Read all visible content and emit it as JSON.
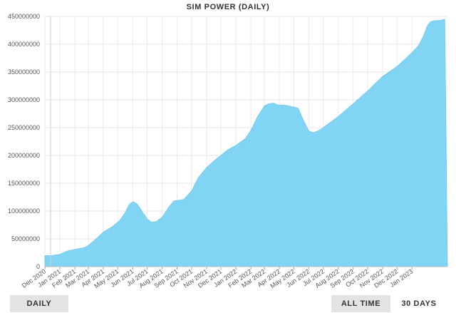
{
  "chart_data": {
    "type": "area",
    "title": "SIM POWER (DAILY)",
    "xlabel": "",
    "ylabel": "",
    "ylim": [
      0,
      450000000
    ],
    "y_ticks": [
      0,
      50000000,
      100000000,
      150000000,
      200000000,
      250000000,
      300000000,
      350000000,
      400000000,
      450000000
    ],
    "y_tick_labels": [
      "0",
      "50000000",
      "100000000",
      "150000000",
      "200000000",
      "250000000",
      "300000000",
      "350000000",
      "400000000",
      "450000000"
    ],
    "x_tick_labels": [
      "Dec 2020",
      "Jan 2021",
      "Feb 2021",
      "Mar 2021",
      "Apr 2021",
      "May 2021",
      "Jun 2021",
      "Jul 2021",
      "Aug 2021",
      "Sep 2021",
      "Oct 2021",
      "Nov 2021",
      "Dec 2021",
      "Jan 2022",
      "Feb 2022",
      "Mar 2022",
      "Apr 2022",
      "May 2022",
      "Jun 2022",
      "Jul 2022",
      "Aug 2022",
      "Sep 2022",
      "Oct 2022",
      "Nov 2022",
      "Dec 2022",
      "Jan 2023"
    ],
    "x_range": [
      "2020-12-01",
      "2023-02-08"
    ],
    "grid": true,
    "series": [
      {
        "color": "#7dd3f3",
        "points": [
          [
            "2020-12-01",
            20000000
          ],
          [
            "2020-12-15",
            20000000
          ],
          [
            "2021-01-01",
            22000000
          ],
          [
            "2021-01-15",
            28000000
          ],
          [
            "2021-02-01",
            31000000
          ],
          [
            "2021-02-20",
            34000000
          ],
          [
            "2021-03-01",
            38000000
          ],
          [
            "2021-03-20",
            52000000
          ],
          [
            "2021-04-01",
            62000000
          ],
          [
            "2021-04-20",
            72000000
          ],
          [
            "2021-05-05",
            83000000
          ],
          [
            "2021-05-15",
            95000000
          ],
          [
            "2021-05-25",
            112000000
          ],
          [
            "2021-06-02",
            117000000
          ],
          [
            "2021-06-10",
            113000000
          ],
          [
            "2021-06-20",
            100000000
          ],
          [
            "2021-07-01",
            86000000
          ],
          [
            "2021-07-10",
            80000000
          ],
          [
            "2021-07-20",
            81000000
          ],
          [
            "2021-08-01",
            89000000
          ],
          [
            "2021-08-15",
            107000000
          ],
          [
            "2021-08-25",
            118000000
          ],
          [
            "2021-09-01",
            119000000
          ],
          [
            "2021-09-15",
            121000000
          ],
          [
            "2021-10-01",
            136000000
          ],
          [
            "2021-10-15",
            160000000
          ],
          [
            "2021-11-01",
            178000000
          ],
          [
            "2021-11-15",
            189000000
          ],
          [
            "2021-12-01",
            200000000
          ],
          [
            "2021-12-15",
            210000000
          ],
          [
            "2022-01-01",
            218000000
          ],
          [
            "2022-01-20",
            230000000
          ],
          [
            "2022-02-01",
            245000000
          ],
          [
            "2022-02-15",
            270000000
          ],
          [
            "2022-03-01",
            289000000
          ],
          [
            "2022-03-10",
            293000000
          ],
          [
            "2022-03-20",
            294000000
          ],
          [
            "2022-03-28",
            291000000
          ],
          [
            "2022-04-15",
            290000000
          ],
          [
            "2022-05-01",
            287000000
          ],
          [
            "2022-05-10",
            285000000
          ],
          [
            "2022-05-20",
            265000000
          ],
          [
            "2022-06-01",
            244000000
          ],
          [
            "2022-06-10",
            241000000
          ],
          [
            "2022-06-20",
            244000000
          ],
          [
            "2022-07-01",
            250000000
          ],
          [
            "2022-08-01",
            270000000
          ],
          [
            "2022-09-01",
            293000000
          ],
          [
            "2022-10-01",
            316000000
          ],
          [
            "2022-11-01",
            342000000
          ],
          [
            "2022-12-01",
            360000000
          ],
          [
            "2022-12-20",
            375000000
          ],
          [
            "2023-01-01",
            385000000
          ],
          [
            "2023-01-15",
            398000000
          ],
          [
            "2023-01-25",
            415000000
          ],
          [
            "2023-02-01",
            432000000
          ],
          [
            "2023-02-08",
            440000000
          ],
          [
            "2023-02-14",
            442000000
          ],
          [
            "2023-03-01",
            443000000
          ],
          [
            "2023-03-10",
            445000000
          ]
        ]
      }
    ]
  },
  "controls": {
    "daily": "DAILY",
    "all_time": "ALL TIME",
    "thirty_days": "30 DAYS"
  }
}
